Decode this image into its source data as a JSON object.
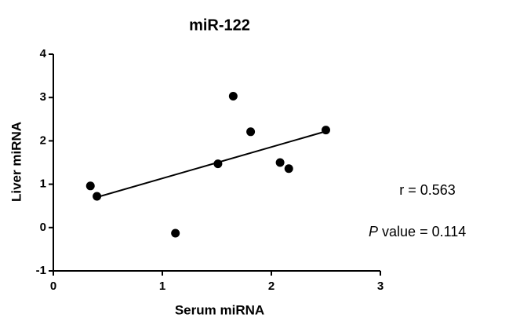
{
  "chart_data": {
    "type": "scatter",
    "title": "miR-122",
    "x_label": "Serum miRNA",
    "y_label": "Liver miRNA",
    "x": [
      0.34,
      0.4,
      1.12,
      1.51,
      1.65,
      1.81,
      2.08,
      2.16,
      2.5
    ],
    "values": [
      0.96,
      0.72,
      -0.13,
      1.47,
      3.03,
      2.21,
      1.5,
      1.36,
      2.25
    ],
    "color": "#000000",
    "fit": {
      "x": [
        0.4,
        2.5
      ],
      "y": [
        0.7,
        2.22
      ]
    },
    "xlim": [
      0,
      3
    ],
    "xticks": [
      0,
      1,
      2,
      3
    ],
    "ylim": [
      -1,
      4
    ],
    "yticks": [
      -1,
      0,
      1,
      2,
      3,
      4
    ],
    "annotations": {
      "r": "r = 0.563",
      "p_symbol": "P",
      "p_text": "value = 0.114"
    }
  }
}
